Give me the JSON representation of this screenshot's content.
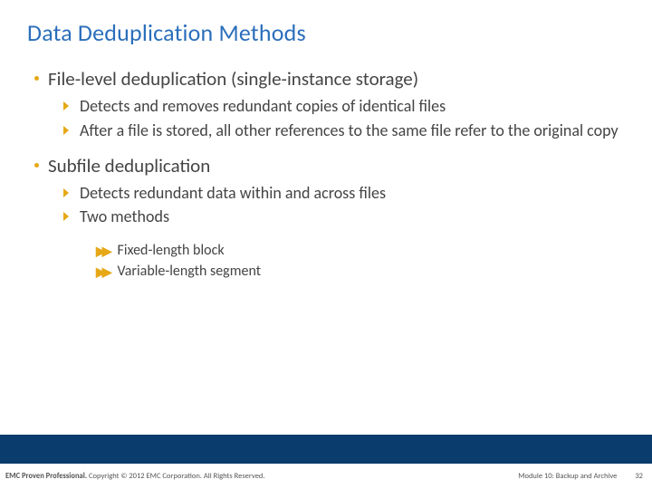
{
  "title": "Data Deduplication Methods",
  "sections": [
    {
      "heading": "File-level deduplication (single-instance storage)",
      "sub": [
        "Detects and removes redundant copies of identical files",
        "After a file is stored, all other references to the same file refer to the original copy"
      ]
    },
    {
      "heading": "Subfile deduplication",
      "sub": [
        "Detects redundant data within and across files",
        "Two methods"
      ],
      "subsub": [
        "Fixed-length block",
        "Variable-length segment"
      ]
    }
  ],
  "footer": {
    "left_strong": "EMC Proven Professional.",
    "left_rest": " Copyright © 2012 EMC Corporation. All Rights Reserved.",
    "module": "Module 10: Backup and Archive",
    "page": "32"
  },
  "colors": {
    "title": "#2a6ebb",
    "accent": "#e6a817",
    "bar": "#0b3c6e",
    "text": "#444444"
  }
}
